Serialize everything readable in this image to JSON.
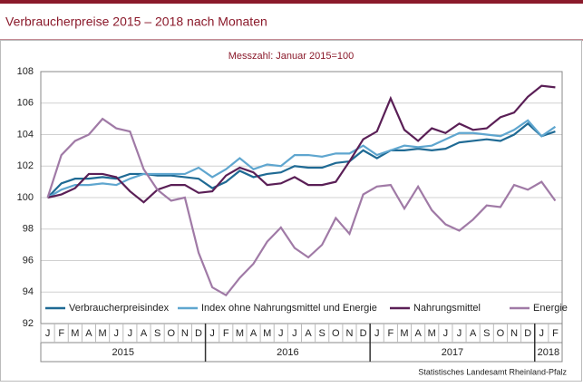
{
  "chart_data": {
    "type": "line",
    "title": "Verbraucherpreise 2015 – 2018 nach Monaten",
    "subtitle": "Messzahl: Januar 2015=100",
    "source": "Statistisches Landesamt Rheinland-Pfalz",
    "categories": [
      "J",
      "F",
      "M",
      "A",
      "M",
      "J",
      "J",
      "A",
      "S",
      "O",
      "N",
      "D",
      "J",
      "F",
      "M",
      "A",
      "M",
      "J",
      "J",
      "A",
      "S",
      "O",
      "N",
      "D",
      "J",
      "F",
      "M",
      "A",
      "M",
      "J",
      "J",
      "A",
      "S",
      "O",
      "N",
      "D",
      "J",
      "F"
    ],
    "year_groups": [
      "2015",
      "2016",
      "2017",
      "2018"
    ],
    "ylim": [
      92,
      108
    ],
    "yticks": [
      92,
      94,
      96,
      98,
      100,
      102,
      104,
      106,
      108
    ],
    "grid": true,
    "series": [
      {
        "name": "Verbraucherpreisindex",
        "color": "#1f6a94",
        "values": [
          100,
          100.9,
          101.2,
          101.2,
          101.3,
          101.2,
          101.5,
          101.5,
          101.4,
          101.4,
          101.3,
          101.2,
          100.6,
          101.0,
          101.7,
          101.3,
          101.5,
          101.6,
          102.0,
          101.9,
          101.9,
          102.2,
          102.3,
          103.0,
          102.5,
          103.0,
          103.0,
          103.1,
          103.0,
          103.1,
          103.5,
          103.6,
          103.7,
          103.6,
          104.0,
          104.7,
          103.9,
          104.2
        ]
      },
      {
        "name": "Index ohne Nahrungsmittel und Energie",
        "color": "#5fa6cf",
        "values": [
          100,
          100.5,
          100.8,
          100.8,
          100.9,
          100.8,
          101.2,
          101.5,
          101.5,
          101.5,
          101.5,
          101.9,
          101.3,
          101.8,
          102.5,
          101.8,
          102.1,
          102.0,
          102.7,
          102.7,
          102.6,
          102.8,
          102.8,
          103.3,
          102.7,
          103.0,
          103.3,
          103.2,
          103.3,
          103.7,
          104.1,
          104.1,
          104.0,
          103.9,
          104.3,
          104.9,
          103.9,
          104.5
        ]
      },
      {
        "name": "Nahrungsmittel",
        "color": "#5a1f56",
        "values": [
          100,
          100.2,
          100.6,
          101.5,
          101.5,
          101.3,
          100.4,
          99.7,
          100.5,
          100.8,
          100.8,
          100.3,
          100.4,
          101.4,
          101.9,
          101.6,
          100.8,
          100.9,
          101.3,
          100.8,
          100.8,
          101.0,
          102.3,
          103.7,
          104.2,
          106.3,
          104.3,
          103.6,
          104.4,
          104.1,
          104.7,
          104.3,
          104.4,
          105.1,
          105.4,
          106.4,
          107.1,
          107.0
        ]
      },
      {
        "name": "Energie",
        "color": "#a07aa6",
        "values": [
          100,
          102.7,
          103.6,
          104.0,
          105.0,
          104.4,
          104.2,
          101.8,
          100.5,
          99.8,
          100.0,
          96.5,
          94.3,
          93.8,
          94.9,
          95.8,
          97.2,
          98.1,
          96.8,
          96.2,
          97.0,
          98.7,
          97.7,
          100.2,
          100.7,
          100.8,
          99.3,
          100.7,
          99.2,
          98.3,
          97.9,
          98.6,
          99.5,
          99.4,
          100.8,
          100.5,
          101.0,
          99.8
        ]
      }
    ]
  }
}
